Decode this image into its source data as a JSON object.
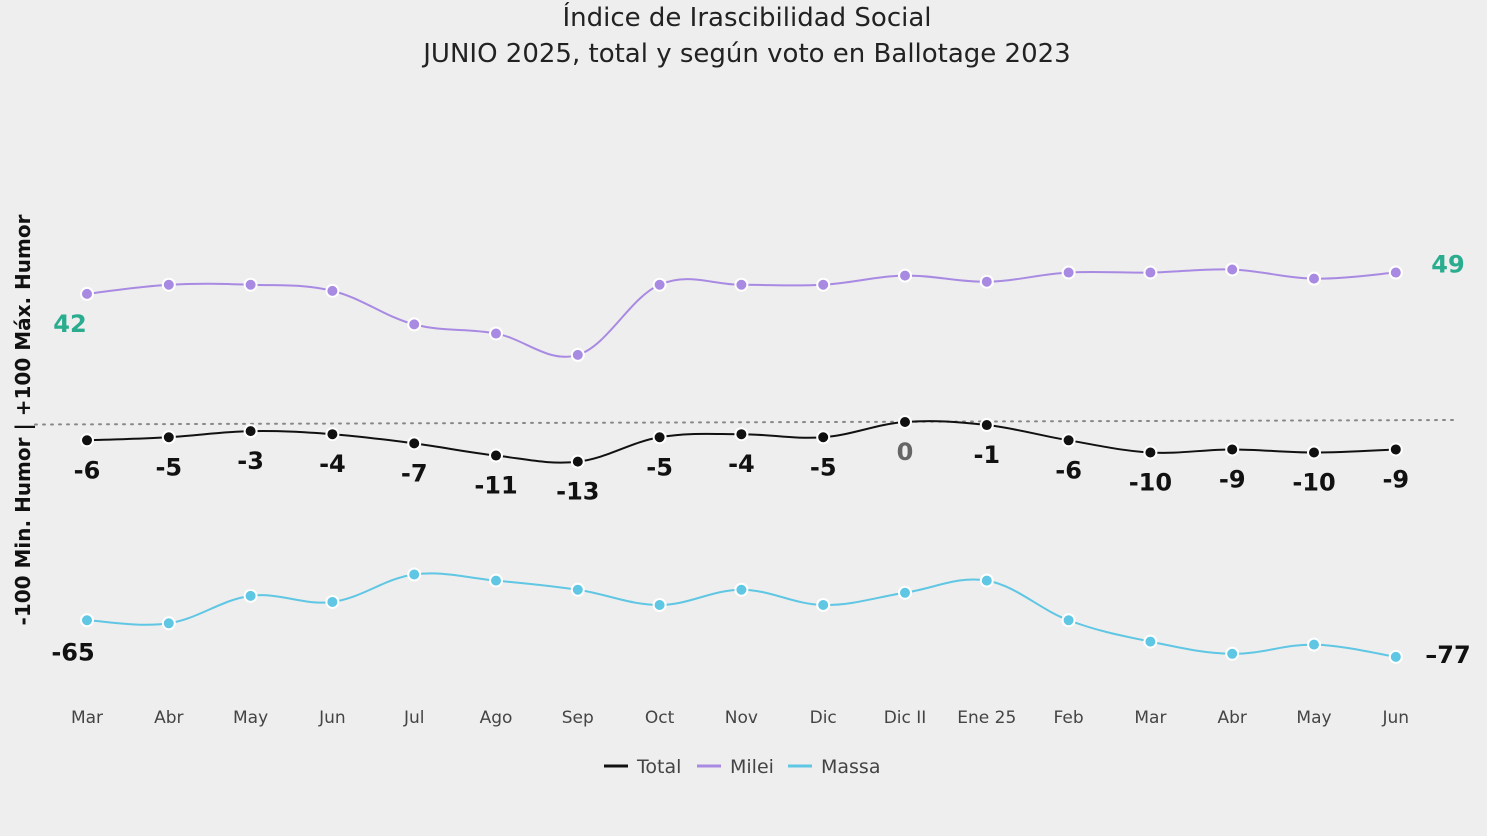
{
  "chart_data": {
    "type": "line",
    "title": "Índice de Irascibilidad Social",
    "subtitle": "JUNIO 2025, total y según voto en Ballotage 2023",
    "ylabel": "-100 Min. Humor | +100 Máx. Humor",
    "xlabel": "",
    "ylim": [
      -100,
      100
    ],
    "reference_line": 0,
    "grid": false,
    "legend_position": "bottom",
    "categories": [
      "Mar",
      "Abr",
      "May",
      "Jun",
      "Jul",
      "Ago",
      "Sep",
      "Oct",
      "Nov",
      "Dic",
      "Dic II",
      "Ene 25",
      "Feb",
      "Mar",
      "Abr",
      "May",
      "Jun"
    ],
    "series": [
      {
        "name": "Total",
        "color": "#111111",
        "values": [
          -6,
          -5,
          -3,
          -4,
          -7,
          -11,
          -13,
          -5,
          -4,
          -5,
          0,
          -1,
          -6,
          -10,
          -9,
          -10,
          -9
        ],
        "labels": [
          "-6",
          "-5",
          "-3",
          "-4",
          "-7",
          "-11",
          "-13",
          "-5",
          "-4",
          "-5",
          "0",
          "-1",
          "-6",
          "-10",
          "-9",
          "-10",
          "-9"
        ]
      },
      {
        "name": "Milei",
        "color": "#a98ae3",
        "values": [
          42,
          45,
          45,
          43,
          32,
          29,
          22,
          45,
          45,
          45,
          48,
          46,
          49,
          49,
          50,
          47,
          49
        ],
        "end_labels": {
          "first": "42",
          "last": "49"
        },
        "end_label_color": "#2aac8e"
      },
      {
        "name": "Massa",
        "color": "#5fc6e3",
        "values": [
          -65,
          -66,
          -57,
          -59,
          -50,
          -52,
          -55,
          -60,
          -55,
          -60,
          -56,
          -52,
          -65,
          -72,
          -76,
          -73,
          -77
        ],
        "end_labels": {
          "first": "-65",
          "last": "–77"
        },
        "end_label_color": "#111111"
      }
    ]
  }
}
